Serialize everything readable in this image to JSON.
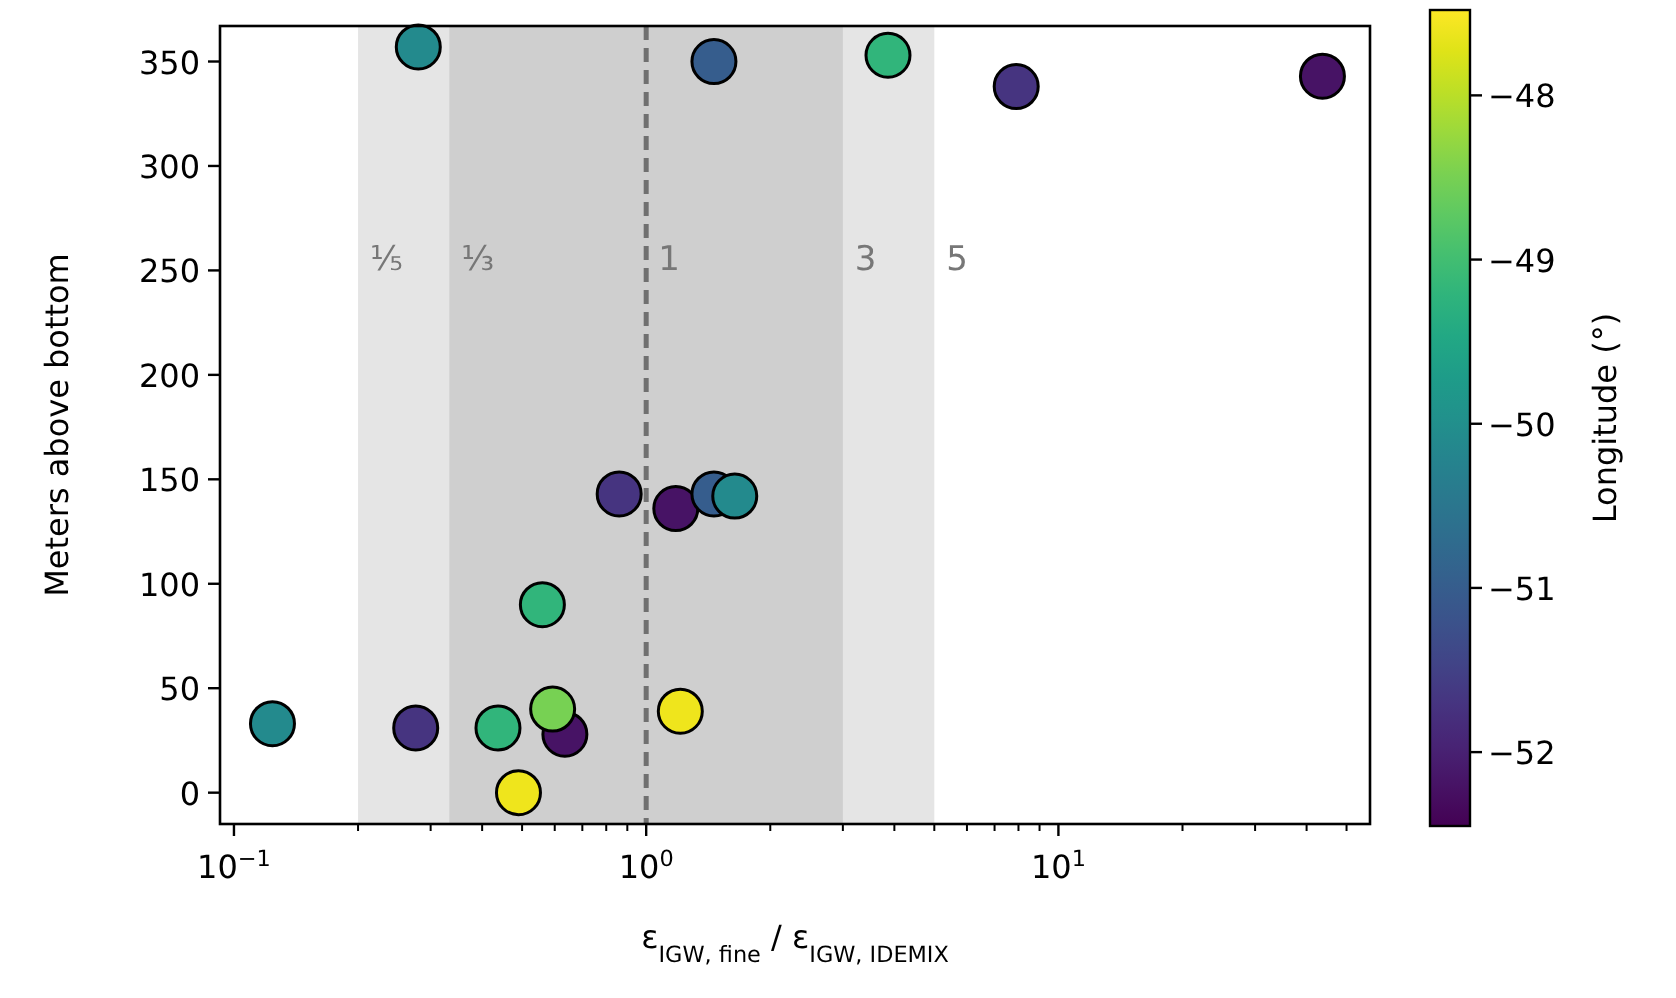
{
  "chart_data": {
    "type": "scatter",
    "xlabel": "ε$_{IGW, fine}$ / ε$_{IGW, IDEMIX}$",
    "ylabel": "Meters above bottom",
    "clabel": "Longitude (°)",
    "log": "x",
    "grid": false,
    "marker": "circle",
    "xlim": [
      0.0925,
      57
    ],
    "ylim": [
      -15,
      367
    ],
    "xticks": [
      {
        "value": 0.1,
        "label": "10$^{−1}$"
      },
      {
        "value": 1,
        "label": "10$^{0}$"
      },
      {
        "value": 10,
        "label": "10$^{1}$"
      }
    ],
    "yticks": [
      0,
      50,
      100,
      150,
      200,
      250,
      300,
      350
    ],
    "clim": [
      -52.45,
      -47.48
    ],
    "cticks": [
      {
        "value": -52,
        "label": "−52"
      },
      {
        "value": -51,
        "label": "−51"
      },
      {
        "value": -50,
        "label": "−50"
      },
      {
        "value": -49,
        "label": "−49"
      },
      {
        "value": -48,
        "label": "−48"
      }
    ],
    "series": [
      {
        "x": [
          0.28,
          1.46,
          3.86,
          7.9,
          43.7,
          0.86,
          1.18,
          1.46,
          1.64,
          0.56,
          0.124,
          0.276,
          0.437,
          0.635,
          0.593,
          1.21,
          0.49
        ],
        "values": [
          357,
          350,
          353,
          338,
          343,
          143,
          136,
          143,
          142,
          90,
          33,
          31,
          31,
          28,
          40,
          39,
          0
        ],
        "cvalues": [
          -50.1,
          -51.0,
          -49.2,
          -51.7,
          -52.2,
          -51.7,
          -52.2,
          -51.0,
          -50.1,
          -49.2,
          -50.1,
          -51.7,
          -49.2,
          -52.2,
          -48.5,
          -47.6,
          -47.6
        ]
      }
    ],
    "bands": [
      {
        "axis": "x",
        "from": 0.2,
        "to": 5,
        "color": "#e5e5e5"
      },
      {
        "axis": "x",
        "from": 0.333,
        "to": 3,
        "color": "#cfcfcf"
      }
    ],
    "ref_lines": [
      {
        "axis": "x",
        "value": 1,
        "color": "#707070",
        "line_style": "dashed"
      }
    ],
    "annotations": [
      {
        "text": "⅕",
        "x": 0.2,
        "y": 250
      },
      {
        "text": "⅓",
        "x": 0.333,
        "y": 250
      },
      {
        "text": "1",
        "x": 1,
        "y": 250
      },
      {
        "text": "3",
        "x": 3,
        "y": 250
      },
      {
        "text": "5",
        "x": 5,
        "y": 250
      }
    ]
  }
}
